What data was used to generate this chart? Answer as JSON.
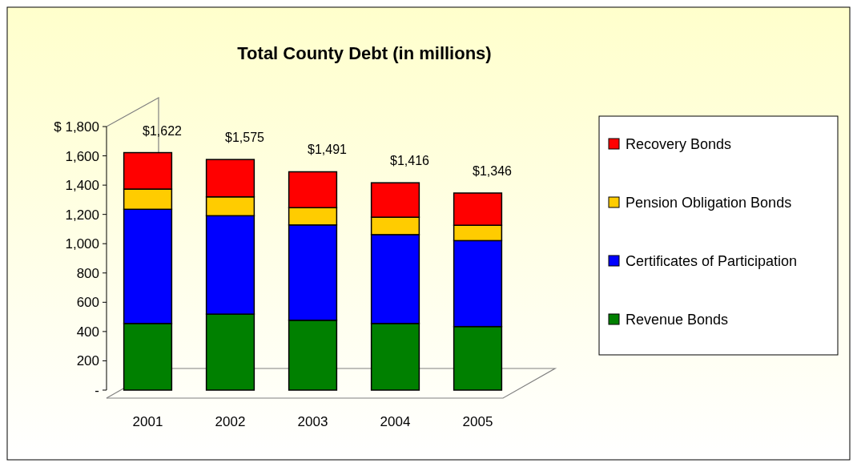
{
  "chart_data": {
    "type": "bar",
    "title": "Total County Debt (in millions)",
    "stacked": true,
    "categories": [
      "2001",
      "2002",
      "2003",
      "2004",
      "2005"
    ],
    "series": [
      {
        "name": "Revenue Bonds",
        "color": "#008000",
        "values": [
          455,
          519,
          477,
          455,
          434
        ]
      },
      {
        "name": "Certificates of Participation",
        "color": "#0000ff",
        "values": [
          780,
          672,
          651,
          607,
          587
        ]
      },
      {
        "name": "Pension Obligation Bonds",
        "color": "#ffcc00",
        "values": [
          138,
          129,
          118,
          119,
          105
        ]
      },
      {
        "name": "Recovery Bonds",
        "color": "#ff0000",
        "values": [
          249,
          255,
          245,
          235,
          220
        ]
      }
    ],
    "totals": [
      "$1,622",
      "$1,575",
      "$1,491",
      "$1,416",
      "$1,346"
    ],
    "ylim": [
      0,
      1800
    ],
    "yticks": [
      {
        "value": 0,
        "label": "-"
      },
      {
        "value": 200,
        "label": "200"
      },
      {
        "value": 400,
        "label": "400"
      },
      {
        "value": 600,
        "label": "600"
      },
      {
        "value": 800,
        "label": "800"
      },
      {
        "value": 1000,
        "label": "1,000"
      },
      {
        "value": 1200,
        "label": "1,200"
      },
      {
        "value": 1400,
        "label": "1,400"
      },
      {
        "value": 1600,
        "label": "1,600"
      },
      {
        "value": 1800,
        "label": "$ 1,800"
      }
    ],
    "grid": false,
    "legend": "right"
  }
}
